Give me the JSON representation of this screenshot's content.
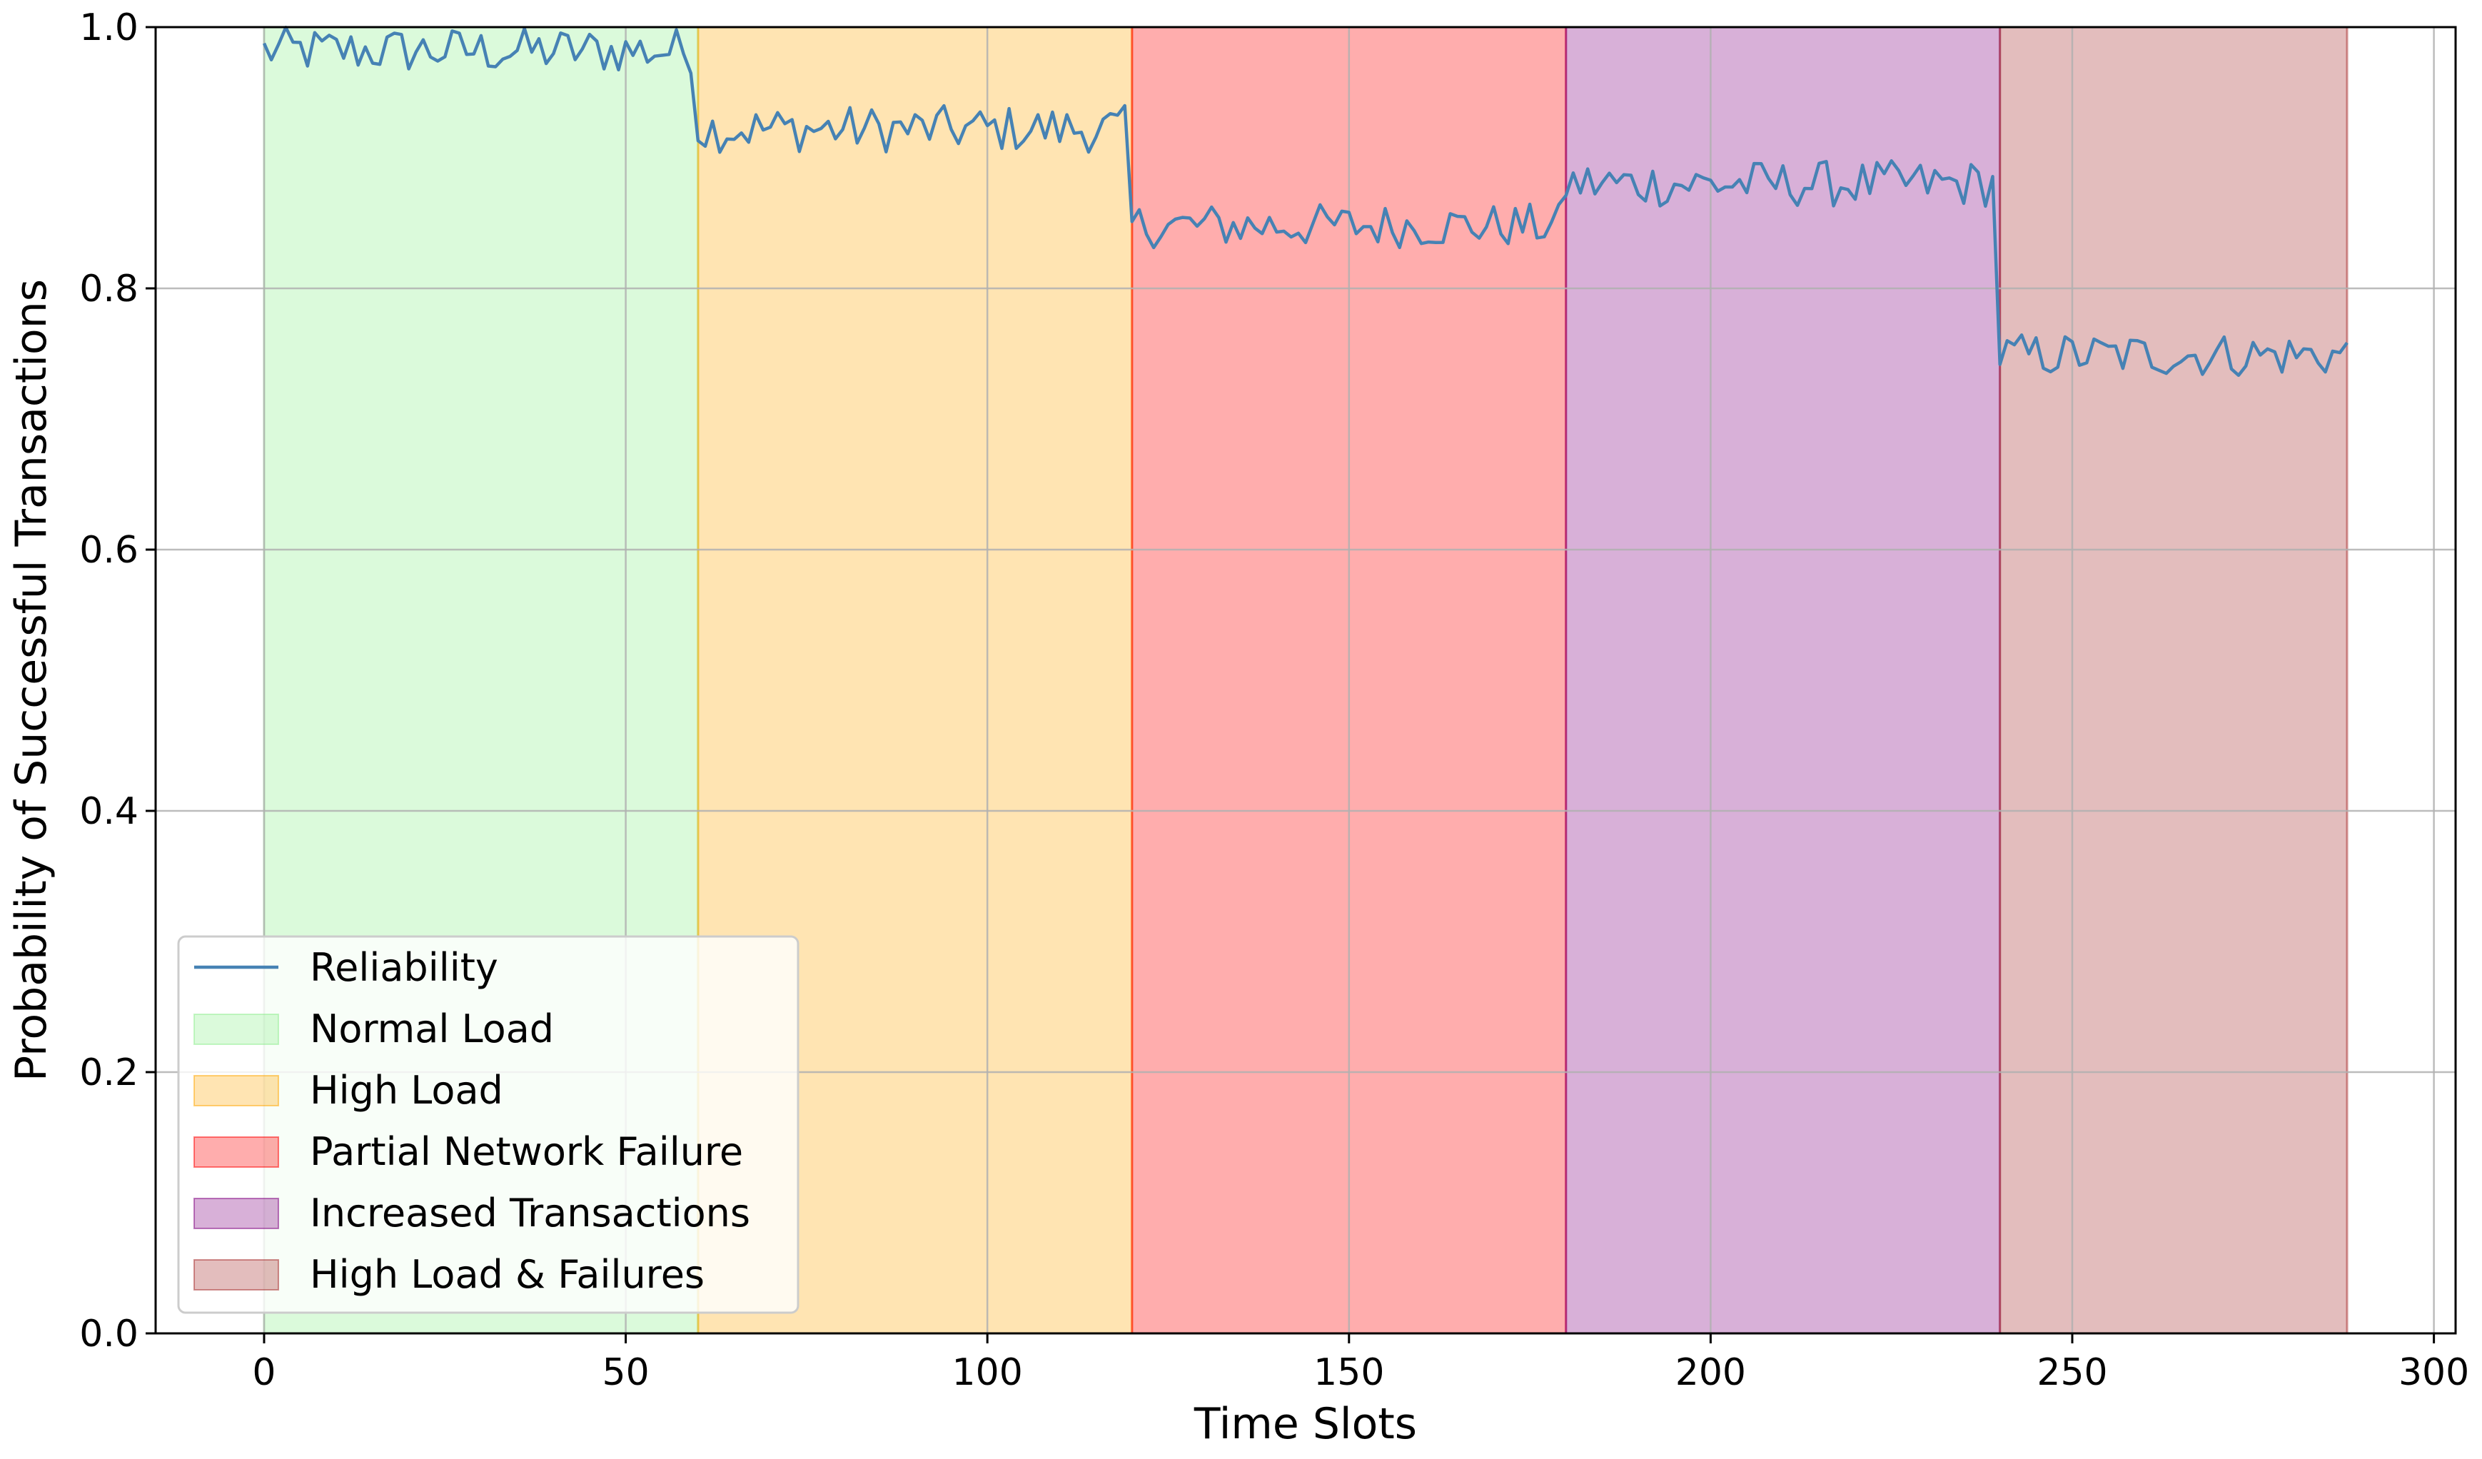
{
  "chart_data": {
    "type": "line",
    "title": "",
    "xlabel": "Time Slots",
    "ylabel": "Probability of Successful Transactions",
    "xlim": [
      -15,
      303
    ],
    "ylim": [
      0,
      1
    ],
    "xticks": [
      0,
      50,
      100,
      150,
      200,
      250,
      300
    ],
    "xtick_labels": [
      "0",
      "50",
      "100",
      "150",
      "200",
      "250",
      "300"
    ],
    "yticks": [
      0,
      0.2,
      0.4,
      0.6,
      0.8,
      1.0
    ],
    "ytick_labels": [
      "0.0",
      "0.2",
      "0.4",
      "0.6",
      "0.8",
      "1.0"
    ],
    "grid": true,
    "legend_position": "bottom-left",
    "series": [
      {
        "name": "Reliability",
        "color": "#4682b4",
        "segments": [
          {
            "x_start": 0,
            "x_end": 59,
            "mean": 0.982,
            "spread": 0.018
          },
          {
            "x_start": 60,
            "x_end": 119,
            "mean": 0.922,
            "spread": 0.018
          },
          {
            "x_start": 120,
            "x_end": 179,
            "mean": 0.848,
            "spread": 0.017
          },
          {
            "x_start": 180,
            "x_end": 239,
            "mean": 0.88,
            "spread": 0.018
          },
          {
            "x_start": 240,
            "x_end": 288,
            "mean": 0.749,
            "spread": 0.017
          }
        ]
      }
    ],
    "regions": [
      {
        "label": "Normal Load",
        "x_start": 0,
        "x_end": 60,
        "color": "#90ee90",
        "opacity": 0.32
      },
      {
        "label": "High Load",
        "x_start": 60,
        "x_end": 120,
        "color": "#ffa500",
        "opacity": 0.3
      },
      {
        "label": "Partial Network Failure",
        "x_start": 120,
        "x_end": 180,
        "color": "#ff0000",
        "opacity": 0.32
      },
      {
        "label": "Increased Transactions",
        "x_start": 180,
        "x_end": 240,
        "color": "#800080",
        "opacity": 0.31
      },
      {
        "label": "High Load & Failures",
        "x_start": 240,
        "x_end": 288,
        "color": "#a52a2a",
        "opacity": 0.31
      }
    ]
  }
}
